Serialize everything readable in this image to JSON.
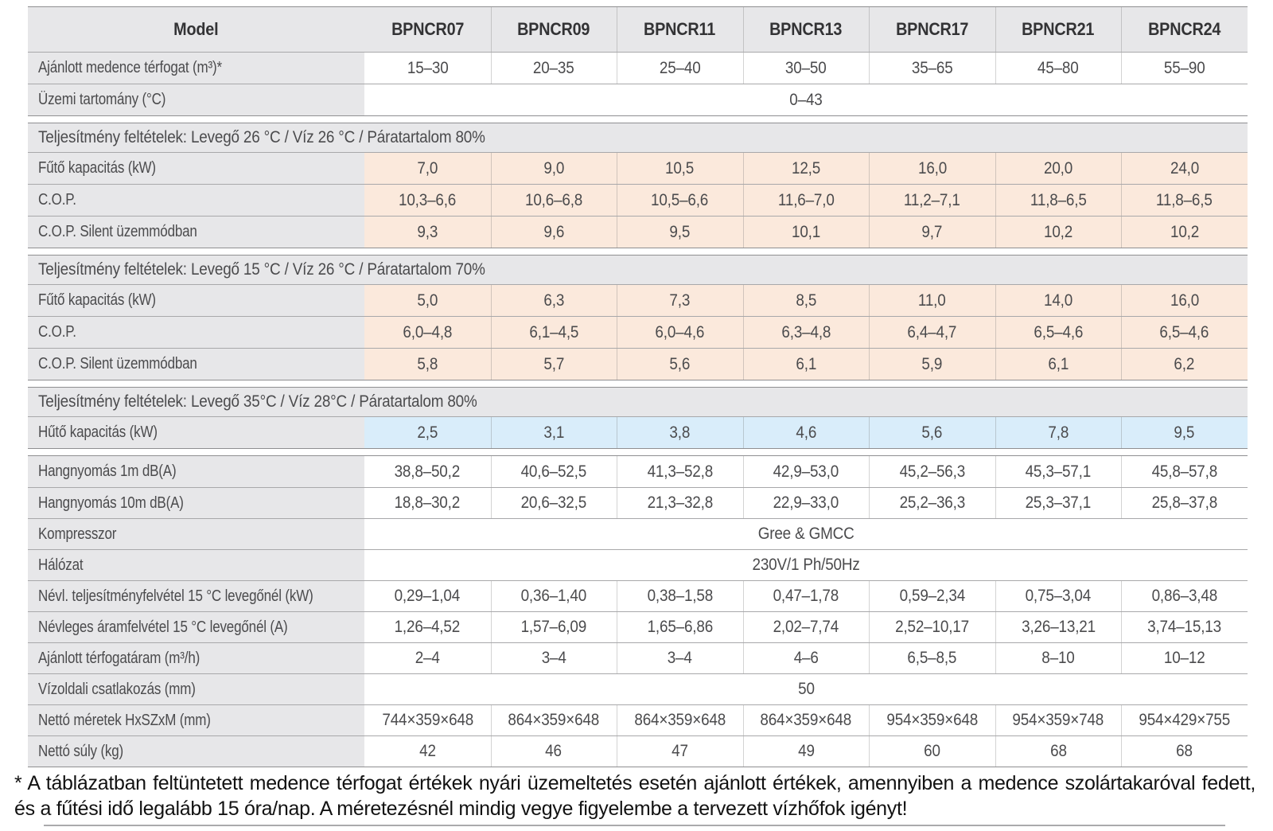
{
  "models": [
    "BPNCR07",
    "BPNCR09",
    "BPNCR11",
    "BPNCR13",
    "BPNCR17",
    "BPNCR21",
    "BPNCR24"
  ],
  "header": {
    "model_column_label": "Model"
  },
  "blocks": [
    {
      "rows": [
        {
          "kind": "header"
        },
        {
          "label": "Ajánlott medence térfogat (m³)*",
          "values": [
            "15–30",
            "20–35",
            "25–40",
            "30–50",
            "35–65",
            "45–80",
            "55–90"
          ]
        },
        {
          "label": "Üzemi tartomány (°C)",
          "merged": "0–43"
        }
      ]
    },
    {
      "section": "Teljesítmény feltételek: Levegő 26 °C / Víz 26 °C / Páratartalom 80%",
      "rows": [
        {
          "label": "Fűtő kapacitás (kW)",
          "tint": "heat",
          "values": [
            "7,0",
            "9,0",
            "10,5",
            "12,5",
            "16,0",
            "20,0",
            "24,0"
          ]
        },
        {
          "label": "C.O.P.",
          "tint": "heat",
          "values": [
            "10,3–6,6",
            "10,6–6,8",
            "10,5–6,6",
            "11,6–7,0",
            "11,2–7,1",
            "11,8–6,5",
            "11,8–6,5"
          ]
        },
        {
          "label": "C.O.P. Silent üzemmódban",
          "tint": "heat",
          "values": [
            "9,3",
            "9,6",
            "9,5",
            "10,1",
            "9,7",
            "10,2",
            "10,2"
          ]
        }
      ]
    },
    {
      "section": "Teljesítmény feltételek: Levegő 15 °C / Víz 26 °C / Páratartalom 70%",
      "rows": [
        {
          "label": "Fűtő kapacitás (kW)",
          "tint": "heat",
          "values": [
            "5,0",
            "6,3",
            "7,3",
            "8,5",
            "11,0",
            "14,0",
            "16,0"
          ]
        },
        {
          "label": "C.O.P.",
          "tint": "heat",
          "values": [
            "6,0–4,8",
            "6,1–4,5",
            "6,0–4,6",
            "6,3–4,8",
            "6,4–4,7",
            "6,5–4,6",
            "6,5–4,6"
          ]
        },
        {
          "label": "C.O.P. Silent üzemmódban",
          "tint": "heat",
          "values": [
            "5,8",
            "5,7",
            "5,6",
            "6,1",
            "5,9",
            "6,1",
            "6,2"
          ]
        }
      ]
    },
    {
      "section": "Teljesítmény feltételek: Levegő 35°C / Víz 28°C / Páratartalom 80%",
      "rows": [
        {
          "label": "Hűtő kapacitás (kW)",
          "tint": "cool",
          "values": [
            "2,5",
            "3,1",
            "3,8",
            "4,6",
            "5,6",
            "7,8",
            "9,5"
          ]
        }
      ]
    },
    {
      "rows": [
        {
          "label": "Hangnyomás 1m dB(A)",
          "values": [
            "38,8–50,2",
            "40,6–52,5",
            "41,3–52,8",
            "42,9–53,0",
            "45,2–56,3",
            "45,3–57,1",
            "45,8–57,8"
          ]
        },
        {
          "label": "Hangnyomás 10m dB(A)",
          "values": [
            "18,8–30,2",
            "20,6–32,5",
            "21,3–32,8",
            "22,9–33,0",
            "25,2–36,3",
            "25,3–37,1",
            "25,8–37,8"
          ]
        },
        {
          "label": "Kompresszor",
          "merged": "Gree & GMCC"
        },
        {
          "label": "Hálózat",
          "merged": "230V/1 Ph/50Hz"
        },
        {
          "label": "Névl. teljesítményfelvétel 15 °C levegőnél (kW)",
          "values": [
            "0,29–1,04",
            "0,36–1,40",
            "0,38–1,58",
            "0,47–1,78",
            "0,59–2,34",
            "0,75–3,04",
            "0,86–3,48"
          ]
        },
        {
          "label": "Névleges áramfelvétel 15 °C levegőnél (A)",
          "values": [
            "1,26–4,52",
            "1,57–6,09",
            "1,65–6,86",
            "2,02–7,74",
            "2,52–10,17",
            "3,26–13,21",
            "3,74–15,13"
          ]
        },
        {
          "label": "Ajánlott térfogatáram (m³/h)",
          "values": [
            "2–4",
            "3–4",
            "3–4",
            "4–6",
            "6,5–8,5",
            "8–10",
            "10–12"
          ]
        },
        {
          "label": "Vízoldali csatlakozás (mm)",
          "merged": "50"
        },
        {
          "label": "Nettó méretek HxSZxM (mm)",
          "values": [
            "744×359×648",
            "864×359×648",
            "864×359×648",
            "864×359×648",
            "954×359×648",
            "954×359×748",
            "954×429×755"
          ]
        },
        {
          "label": "Nettó súly (kg)",
          "values": [
            "42",
            "46",
            "47",
            "49",
            "60",
            "68",
            "68"
          ]
        }
      ]
    }
  ],
  "footnote": "* A táblázatban feltüntetett medence térfogat értékek nyári üzemeltetés esetén ajánlott értékek, amennyiben a medence szolártakaróval fedett, és a fűtési idő legalább 15 óra/nap. A méretezésnél mindig vegye figyelembe a tervezett vízhőfok igényt!",
  "colors": {
    "cell_gray": "#e7e7e9",
    "heat_tint": "#fbe9dc",
    "cool_tint": "#d9edfa",
    "block_border": "#8f8f91",
    "row_border": "#a8a8aa",
    "text": "#4b4b4d",
    "header_text": "#333335",
    "footnote_text": "#121212"
  }
}
